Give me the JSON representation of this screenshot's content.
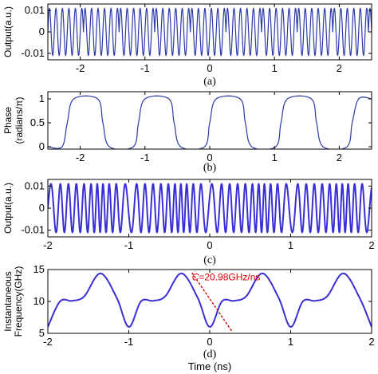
{
  "chart_data": [
    {
      "panel": "a",
      "panel_label": "(a)",
      "type": "line",
      "ylabel": "Output(a.u.)",
      "xlim": [
        -2.5,
        2.5
      ],
      "ylim": [
        -0.013,
        0.013
      ],
      "xticks": [
        -2,
        -1,
        0,
        1,
        2
      ],
      "xtick_labels": [
        "-2",
        "-1",
        "0",
        "1",
        "2"
      ],
      "yticks": [
        0.01,
        0,
        -0.01
      ],
      "ytick_labels": [
        "0.01",
        "0",
        "-0.01"
      ],
      "series": [
        {
          "color": "#2b3ba8",
          "amplitude": 0.011,
          "frequency_ghz": 10,
          "phase_pi": [
            0,
            1,
            0,
            1,
            0,
            1,
            0,
            1,
            0,
            1,
            0
          ]
        }
      ]
    },
    {
      "panel": "b",
      "panel_label": "(b)",
      "type": "line",
      "ylabel": "Phase (radians/π)",
      "xlim": [
        -2.5,
        2.5
      ],
      "ylim": [
        -0.05,
        1.15
      ],
      "xticks": [
        -2,
        -1,
        0,
        1,
        2
      ],
      "xtick_labels": [
        "-2",
        "-1",
        "0",
        "1",
        "2"
      ],
      "yticks": [
        0,
        0.5,
        1
      ],
      "ytick_labels": [
        "0",
        "0.5",
        "1"
      ],
      "series": [
        {
          "color": "#2b3ba8",
          "x": [
            -2.5,
            -2.28,
            -2.2,
            -2.1,
            -1.73,
            -1.65,
            -1.55,
            -1.18,
            -1.1,
            -1.0,
            -0.63,
            -0.55,
            -0.45,
            -0.08,
            0.0,
            0.1,
            0.47,
            0.55,
            0.65,
            1.02,
            1.1,
            1.2,
            1.57,
            1.65,
            1.75,
            2.12,
            2.2,
            2.3,
            2.5
          ],
          "y": [
            0.0,
            0.0,
            0.5,
            1.0,
            1.0,
            0.5,
            0.0,
            0.0,
            0.5,
            1.0,
            1.0,
            0.5,
            0.0,
            0.0,
            0.5,
            1.0,
            1.0,
            0.5,
            0.0,
            0.0,
            0.5,
            1.0,
            1.0,
            0.5,
            0.0,
            0.0,
            0.5,
            1.0,
            1.0
          ]
        }
      ]
    },
    {
      "panel": "c",
      "panel_label": "(c)",
      "type": "line",
      "ylabel": "Output(a.u.)",
      "xlim": [
        -2,
        2
      ],
      "ylim": [
        -0.013,
        0.013
      ],
      "xticks": [
        -2,
        -1,
        0,
        1,
        2
      ],
      "xtick_labels": [
        "-2",
        "-1",
        "0",
        "1",
        "2"
      ],
      "yticks": [
        0.01,
        0,
        -0.01
      ],
      "ytick_labels": [
        "0.01",
        "0",
        "-0.01"
      ],
      "series": [
        {
          "color": "#3a2fd6",
          "amplitude": 0.011
        }
      ]
    },
    {
      "panel": "d",
      "panel_label": "(d)",
      "type": "line",
      "ylabel": "Instantaneous Frequency(GHz)",
      "xlabel": "Time (ns)",
      "xlim": [
        -2,
        2
      ],
      "ylim": [
        5,
        15
      ],
      "xticks": [
        -2,
        -1,
        0,
        1,
        2
      ],
      "xtick_labels": [
        "-2",
        "-1",
        "0",
        "1",
        "2"
      ],
      "yticks": [
        15,
        10,
        5
      ],
      "ytick_labels": [
        "15",
        "10",
        "5"
      ],
      "series": [
        {
          "color": "#3a2fd6",
          "x": [
            -2.0,
            -1.85,
            -1.7,
            -1.55,
            -1.35,
            -1.15,
            -1.0,
            -0.85,
            -0.7,
            -0.55,
            -0.35,
            -0.15,
            0.0,
            0.15,
            0.3,
            0.45,
            0.65,
            0.85,
            1.0,
            1.15,
            1.3,
            1.45,
            1.65,
            1.85,
            2.0
          ],
          "y": [
            6.0,
            10.0,
            10.1,
            10.8,
            14.4,
            10.6,
            6.0,
            10.0,
            10.1,
            10.8,
            14.4,
            10.6,
            6.0,
            10.0,
            10.1,
            10.8,
            14.4,
            10.6,
            6.0,
            10.0,
            10.1,
            10.8,
            14.4,
            10.6,
            6.0
          ]
        }
      ],
      "fit_line": {
        "color": "#e00000",
        "x": [
          -0.22,
          0.28
        ],
        "y": [
          14.5,
          5.2
        ]
      },
      "annotation": {
        "prefix": "C",
        "text": "=20.98GHz/ns",
        "x": -0.22,
        "y": 13.3
      }
    }
  ]
}
